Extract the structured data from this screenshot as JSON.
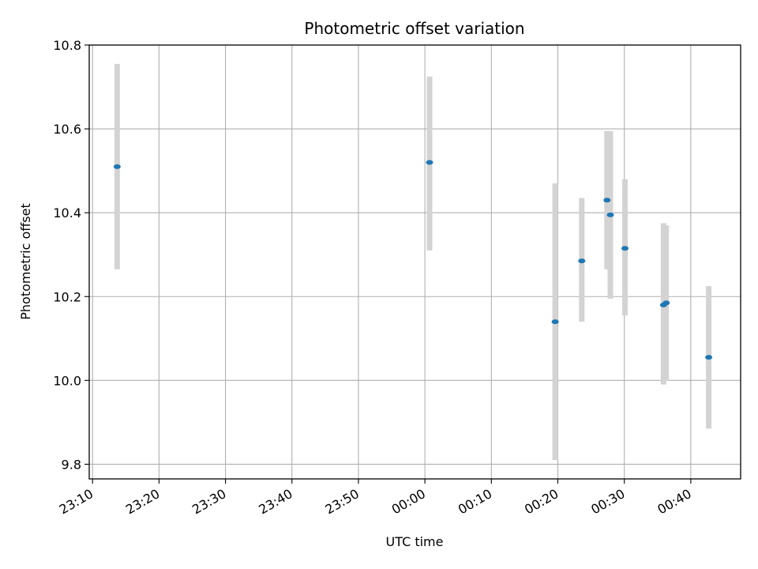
{
  "chart_data": {
    "type": "scatter",
    "title": "Photometric offset variation",
    "xlabel": "UTC time",
    "ylabel": "Photometric offset",
    "x_unit": "minutes relative to 00:00 UTC",
    "xlim": [
      -50.5,
      47.5
    ],
    "ylim": [
      9.765,
      10.8
    ],
    "x_ticks": [
      -50,
      -40,
      -30,
      -20,
      -10,
      0,
      10,
      20,
      30,
      40
    ],
    "x_tick_labels": [
      "23:10",
      "23:20",
      "23:30",
      "23:40",
      "23:50",
      "00:00",
      "00:10",
      "00:20",
      "00:30",
      "00:40"
    ],
    "y_ticks": [
      9.8,
      10.0,
      10.2,
      10.4,
      10.6,
      10.8
    ],
    "y_tick_labels": [
      "9.8",
      "10.0",
      "10.2",
      "10.4",
      "10.6",
      "10.8"
    ],
    "grid": true,
    "point_color": "#1f77b4",
    "errorbar_color": "#d3d3d3",
    "points": [
      {
        "x": -46.3,
        "y": 10.51,
        "ylow": 10.265,
        "yhigh": 10.755
      },
      {
        "x": 0.7,
        "y": 10.52,
        "ylow": 10.31,
        "yhigh": 10.725
      },
      {
        "x": 19.6,
        "y": 10.14,
        "ylow": 9.81,
        "yhigh": 10.47
      },
      {
        "x": 23.6,
        "y": 10.285,
        "ylow": 10.14,
        "yhigh": 10.435
      },
      {
        "x": 27.4,
        "y": 10.43,
        "ylow": 10.265,
        "yhigh": 10.595
      },
      {
        "x": 27.9,
        "y": 10.395,
        "ylow": 10.195,
        "yhigh": 10.595
      },
      {
        "x": 30.1,
        "y": 10.315,
        "ylow": 10.155,
        "yhigh": 10.48
      },
      {
        "x": 35.9,
        "y": 10.18,
        "ylow": 9.99,
        "yhigh": 10.375
      },
      {
        "x": 36.3,
        "y": 10.185,
        "ylow": 10.0,
        "yhigh": 10.37
      },
      {
        "x": 42.7,
        "y": 10.055,
        "ylow": 9.885,
        "yhigh": 10.225
      }
    ]
  }
}
